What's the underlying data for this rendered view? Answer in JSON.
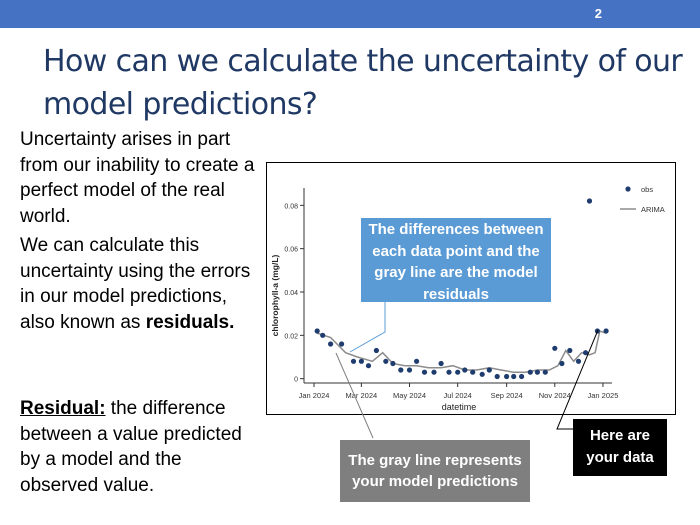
{
  "slide": {
    "number": "2",
    "title": "How can we calculate the uncertainty of our model predictions?",
    "para1": "Uncertainty arises in part from our inability to create a perfect model of the real world.",
    "para2_prefix": "We can calculate this uncertainty using the errors in our model predictions, also known as ",
    "para2_bold": "residuals.",
    "para3_term": "Residual:",
    "para3_rest": " the difference between a value predicted by a model and the observed value.",
    "accent_color": "#4672c4",
    "title_color": "#1f3864"
  },
  "callouts": {
    "residuals": "The differences between each data point and the gray line are the model residuals",
    "model": "The gray line represents your model predictions",
    "data": "Here are your data"
  },
  "chart_data": {
    "type": "scatter",
    "xlabel": "datetime",
    "ylabel": "chlorophyll-a (mg/L)",
    "ylim": [
      -0.002,
      0.088
    ],
    "y_ticks": [
      "0",
      "0.02",
      "0.04",
      "0.06",
      "0.08"
    ],
    "x_ticks": [
      "Jan 2024",
      "Mar 2024",
      "May 2024",
      "Jul 2024",
      "Sep 2024",
      "Nov 2024",
      "Jan 2025"
    ],
    "legend_placement": "top-right",
    "series": [
      {
        "name": "obs",
        "marker": "dot",
        "color": "#1f3c6e",
        "points": [
          [
            "2024-01-05",
            0.022
          ],
          [
            "2024-01-12",
            0.02
          ],
          [
            "2024-01-22",
            0.016
          ],
          [
            "2024-02-05",
            0.016
          ],
          [
            "2024-02-20",
            0.008
          ],
          [
            "2024-03-01",
            0.008
          ],
          [
            "2024-03-10",
            0.006
          ],
          [
            "2024-03-20",
            0.013
          ],
          [
            "2024-04-01",
            0.008
          ],
          [
            "2024-04-10",
            0.007
          ],
          [
            "2024-04-20",
            0.004
          ],
          [
            "2024-05-01",
            0.004
          ],
          [
            "2024-05-10",
            0.008
          ],
          [
            "2024-05-20",
            0.003
          ],
          [
            "2024-06-01",
            0.003
          ],
          [
            "2024-06-10",
            0.007
          ],
          [
            "2024-06-20",
            0.003
          ],
          [
            "2024-07-01",
            0.003
          ],
          [
            "2024-07-10",
            0.004
          ],
          [
            "2024-07-20",
            0.003
          ],
          [
            "2024-08-01",
            0.002
          ],
          [
            "2024-08-10",
            0.004
          ],
          [
            "2024-08-20",
            0.001
          ],
          [
            "2024-09-01",
            0.001
          ],
          [
            "2024-09-10",
            0.001
          ],
          [
            "2024-09-20",
            0.001
          ],
          [
            "2024-10-01",
            0.003
          ],
          [
            "2024-10-10",
            0.003
          ],
          [
            "2024-10-20",
            0.003
          ],
          [
            "2024-11-01",
            0.014
          ],
          [
            "2024-11-10",
            0.007
          ],
          [
            "2024-11-20",
            0.013
          ],
          [
            "2024-12-01",
            0.008
          ],
          [
            "2024-12-10",
            0.012
          ],
          [
            "2024-12-15",
            0.082
          ],
          [
            "2024-12-25",
            0.022
          ],
          [
            "2025-01-05",
            0.022
          ]
        ]
      },
      {
        "name": "ARIMA",
        "marker": "line",
        "color": "#8c8c8c",
        "points": [
          [
            "2024-01-05",
            0.021
          ],
          [
            "2024-01-22",
            0.019
          ],
          [
            "2024-02-10",
            0.012
          ],
          [
            "2024-02-25",
            0.01
          ],
          [
            "2024-03-15",
            0.008
          ],
          [
            "2024-03-28",
            0.012
          ],
          [
            "2024-04-10",
            0.007
          ],
          [
            "2024-04-25",
            0.006
          ],
          [
            "2024-05-10",
            0.006
          ],
          [
            "2024-05-25",
            0.005
          ],
          [
            "2024-06-10",
            0.005
          ],
          [
            "2024-06-25",
            0.006
          ],
          [
            "2024-07-10",
            0.004
          ],
          [
            "2024-07-25",
            0.004
          ],
          [
            "2024-08-10",
            0.005
          ],
          [
            "2024-08-25",
            0.004
          ],
          [
            "2024-09-10",
            0.003
          ],
          [
            "2024-09-25",
            0.003
          ],
          [
            "2024-10-10",
            0.004
          ],
          [
            "2024-10-25",
            0.004
          ],
          [
            "2024-11-05",
            0.006
          ],
          [
            "2024-11-15",
            0.013
          ],
          [
            "2024-11-25",
            0.008
          ],
          [
            "2024-12-05",
            0.012
          ],
          [
            "2024-12-15",
            0.011
          ],
          [
            "2024-12-22",
            0.012
          ],
          [
            "2024-12-28",
            0.022
          ],
          [
            "2025-01-05",
            0.021
          ]
        ]
      }
    ]
  }
}
